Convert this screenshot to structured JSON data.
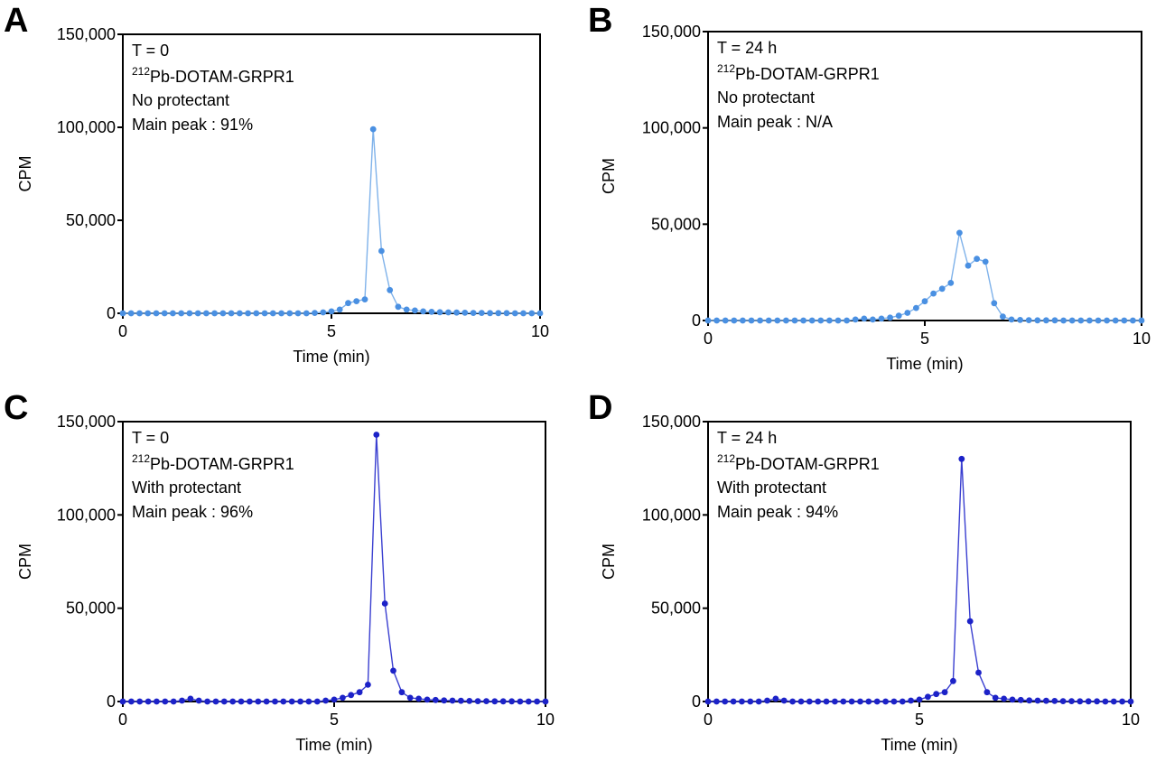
{
  "figure": {
    "panels": [
      {
        "letter": "A",
        "annot": [
          "T = 0",
          "Pb-DOTAM-GRPR1",
          "No protectant",
          "Main peak : 91%"
        ],
        "sup": "212"
      },
      {
        "letter": "B",
        "annot": [
          "T = 24 h",
          "Pb-DOTAM-GRPR1",
          "No protectant",
          "Main peak : N/A"
        ],
        "sup": "212"
      },
      {
        "letter": "C",
        "annot": [
          "T = 0",
          "Pb-DOTAM-GRPR1",
          "With protectant",
          "Main peak : 96%"
        ],
        "sup": "212"
      },
      {
        "letter": "D",
        "annot": [
          "T = 24 h",
          "Pb-DOTAM-GRPR1",
          "With protectant",
          "Main peak : 94%"
        ],
        "sup": "212"
      }
    ]
  },
  "chart_data": [
    {
      "type": "line",
      "panel": "A",
      "xlabel": "Time (min)",
      "ylabel": "CPM",
      "xlim": [
        0,
        10
      ],
      "ylim": [
        0,
        150000
      ],
      "xticks": [
        "0",
        "5",
        "10"
      ],
      "yticks": [
        "0",
        "50,000",
        "100,000",
        "150,000"
      ],
      "color": "#4a90e2",
      "line_color": "#7fb2ea",
      "x": [
        0,
        0.2,
        0.4,
        0.6,
        0.8,
        1.0,
        1.2,
        1.4,
        1.6,
        1.8,
        2.0,
        2.2,
        2.4,
        2.6,
        2.8,
        3.0,
        3.2,
        3.4,
        3.6,
        3.8,
        4.0,
        4.2,
        4.4,
        4.6,
        4.8,
        5.0,
        5.2,
        5.4,
        5.6,
        5.8,
        6.0,
        6.2,
        6.4,
        6.6,
        6.8,
        7.0,
        7.2,
        7.4,
        7.6,
        7.8,
        8.0,
        8.2,
        8.4,
        8.6,
        8.8,
        9.0,
        9.2,
        9.4,
        9.6,
        9.8,
        10.0
      ],
      "y": [
        0,
        0,
        0,
        0,
        0,
        0,
        0,
        0,
        0,
        0,
        0,
        0,
        0,
        0,
        0,
        0,
        0,
        0,
        0,
        0,
        0,
        0,
        0,
        200,
        500,
        1000,
        2000,
        5500,
        6500,
        7500,
        99000,
        33500,
        12500,
        3500,
        2000,
        1500,
        1000,
        800,
        600,
        500,
        400,
        300,
        200,
        200,
        100,
        100,
        100,
        0,
        0,
        0,
        0
      ]
    },
    {
      "type": "line",
      "panel": "B",
      "xlabel": "Time (min)",
      "ylabel": "CPM",
      "xlim": [
        0,
        10
      ],
      "ylim": [
        0,
        150000
      ],
      "xticks": [
        "0",
        "5",
        "10"
      ],
      "yticks": [
        "0",
        "50,000",
        "100,000",
        "150,000"
      ],
      "color": "#4a90e2",
      "line_color": "#7fb2ea",
      "x": [
        0,
        0.2,
        0.4,
        0.6,
        0.8,
        1.0,
        1.2,
        1.4,
        1.6,
        1.8,
        2.0,
        2.2,
        2.4,
        2.6,
        2.8,
        3.0,
        3.2,
        3.4,
        3.6,
        3.8,
        4.0,
        4.2,
        4.4,
        4.6,
        4.8,
        5.0,
        5.2,
        5.4,
        5.6,
        5.8,
        6.0,
        6.2,
        6.4,
        6.6,
        6.8,
        7.0,
        7.2,
        7.4,
        7.6,
        7.8,
        8.0,
        8.2,
        8.4,
        8.6,
        8.8,
        9.0,
        9.2,
        9.4,
        9.6,
        9.8,
        10.0
      ],
      "y": [
        0,
        0,
        0,
        0,
        0,
        0,
        0,
        0,
        0,
        0,
        0,
        0,
        0,
        0,
        0,
        0,
        0,
        500,
        1000,
        500,
        1000,
        1500,
        2500,
        4000,
        6500,
        10000,
        14000,
        16500,
        19500,
        45500,
        28500,
        32000,
        30500,
        9000,
        2000,
        500,
        300,
        200,
        100,
        100,
        100,
        0,
        0,
        0,
        0,
        0,
        0,
        0,
        0,
        0,
        0
      ]
    },
    {
      "type": "line",
      "panel": "C",
      "xlabel": "Time (min)",
      "ylabel": "CPM",
      "xlim": [
        0,
        10
      ],
      "ylim": [
        0,
        150000
      ],
      "xticks": [
        "0",
        "5",
        "10"
      ],
      "yticks": [
        "0",
        "50,000",
        "100,000",
        "150,000"
      ],
      "color": "#1c22c8",
      "line_color": "#3a3fd0",
      "x": [
        0,
        0.2,
        0.4,
        0.6,
        0.8,
        1.0,
        1.2,
        1.4,
        1.6,
        1.8,
        2.0,
        2.2,
        2.4,
        2.6,
        2.8,
        3.0,
        3.2,
        3.4,
        3.6,
        3.8,
        4.0,
        4.2,
        4.4,
        4.6,
        4.8,
        5.0,
        5.2,
        5.4,
        5.6,
        5.8,
        6.0,
        6.2,
        6.4,
        6.6,
        6.8,
        7.0,
        7.2,
        7.4,
        7.6,
        7.8,
        8.0,
        8.2,
        8.4,
        8.6,
        8.8,
        9.0,
        9.2,
        9.4,
        9.6,
        9.8,
        10.0
      ],
      "y": [
        0,
        0,
        0,
        0,
        0,
        0,
        0,
        500,
        1500,
        500,
        0,
        0,
        0,
        0,
        0,
        0,
        0,
        0,
        0,
        0,
        0,
        0,
        0,
        0,
        500,
        1000,
        2000,
        3500,
        5000,
        9000,
        143000,
        52500,
        16500,
        5000,
        2000,
        1500,
        1000,
        800,
        600,
        500,
        400,
        300,
        200,
        200,
        100,
        100,
        100,
        0,
        0,
        0,
        0
      ]
    },
    {
      "type": "line",
      "panel": "D",
      "xlabel": "Time (min)",
      "ylabel": "CPM",
      "xlim": [
        0,
        10
      ],
      "ylim": [
        0,
        150000
      ],
      "xticks": [
        "0",
        "5",
        "10"
      ],
      "yticks": [
        "0",
        "50,000",
        "100,000",
        "150,000"
      ],
      "color": "#1c22c8",
      "line_color": "#3a3fd0",
      "x": [
        0,
        0.2,
        0.4,
        0.6,
        0.8,
        1.0,
        1.2,
        1.4,
        1.6,
        1.8,
        2.0,
        2.2,
        2.4,
        2.6,
        2.8,
        3.0,
        3.2,
        3.4,
        3.6,
        3.8,
        4.0,
        4.2,
        4.4,
        4.6,
        4.8,
        5.0,
        5.2,
        5.4,
        5.6,
        5.8,
        6.0,
        6.2,
        6.4,
        6.6,
        6.8,
        7.0,
        7.2,
        7.4,
        7.6,
        7.8,
        8.0,
        8.2,
        8.4,
        8.6,
        8.8,
        9.0,
        9.2,
        9.4,
        9.6,
        9.8,
        10.0
      ],
      "y": [
        0,
        0,
        0,
        0,
        0,
        0,
        0,
        500,
        1500,
        500,
        0,
        0,
        0,
        0,
        0,
        0,
        0,
        0,
        0,
        0,
        0,
        0,
        0,
        0,
        500,
        1000,
        2500,
        4000,
        5000,
        11000,
        130000,
        43000,
        15500,
        5000,
        2000,
        1500,
        1000,
        800,
        600,
        500,
        400,
        300,
        200,
        200,
        100,
        100,
        100,
        0,
        0,
        0,
        0
      ]
    }
  ]
}
